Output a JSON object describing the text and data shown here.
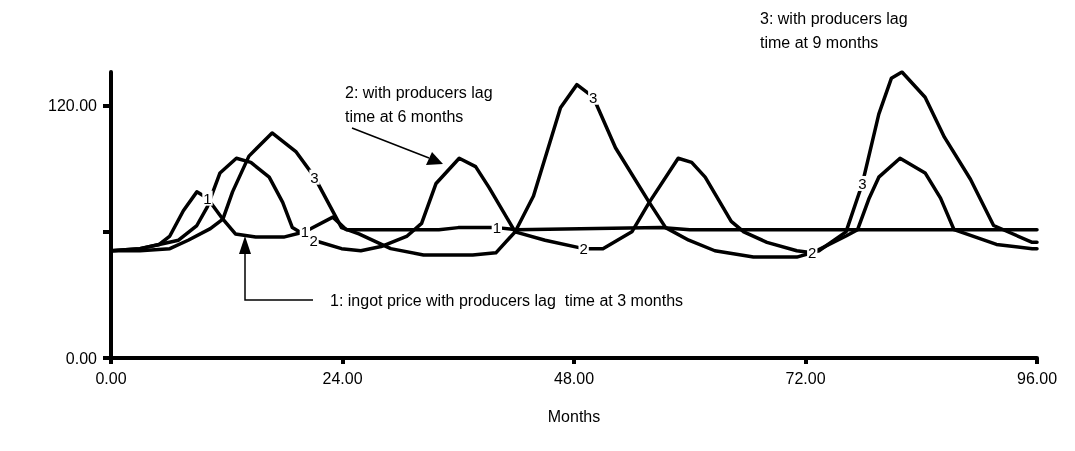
{
  "chart_data": {
    "type": "line",
    "xlabel": "Months",
    "xlim": [
      0,
      96
    ],
    "ylim": [
      0,
      136
    ],
    "xticks": [
      {
        "value": 0,
        "label": "0.00"
      },
      {
        "value": 24,
        "label": "24.00"
      },
      {
        "value": 48,
        "label": "48.00"
      },
      {
        "value": 72,
        "label": "72.00"
      },
      {
        "value": 96,
        "label": "96.00"
      }
    ],
    "yticks": [
      {
        "value": 0,
        "label": "0.00"
      },
      {
        "value": 60,
        "label": null
      },
      {
        "value": 120,
        "label": "120.00"
      }
    ],
    "grid": false,
    "legend": false,
    "marker": "none",
    "line_style": "solid",
    "annotations": [
      "1: ingot price with producers lag  time at 3 months",
      "2: with producers lag time at 6 months",
      "3: with producers lag time at 9 months"
    ],
    "series": [
      {
        "name": "1",
        "color": "#000000",
        "x": [
          0,
          3,
          5,
          6.1,
          7.5,
          8.9,
          10,
          11.6,
          12.9,
          15,
          17.9,
          20.1,
          23,
          24.4,
          27,
          34,
          36,
          40,
          42,
          57,
          60,
          96
        ],
        "values": [
          51,
          52,
          54,
          58,
          70,
          79,
          76,
          66,
          59,
          57.5,
          57.5,
          60,
          67,
          61,
          61,
          61,
          62,
          62,
          61,
          62,
          61,
          61
        ]
      },
      {
        "name": "2",
        "color": "#000000",
        "x": [
          0,
          3,
          5,
          7,
          8.9,
          10,
          11.3,
          13,
          14.5,
          16.4,
          17.8,
          18.8,
          21,
          23.9,
          25.9,
          28,
          30.7,
          32.2,
          33.7,
          36.1,
          37.8,
          39.2,
          41.9,
          45,
          49,
          51,
          54,
          55.8,
          58.8,
          60.2,
          61.6,
          64.3,
          65.6,
          68,
          71.1,
          72.7,
          76.2,
          77.4,
          78.6,
          79.6,
          81.8,
          84.4,
          86,
          87.4,
          91.8,
          95.5,
          96
        ],
        "values": [
          51,
          52,
          54,
          56,
          63,
          72,
          88,
          95,
          93,
          86,
          74,
          62,
          56,
          52,
          51,
          53,
          58,
          64,
          83,
          95,
          91,
          81,
          60,
          56,
          52,
          52,
          60,
          74,
          95,
          93,
          86,
          65,
          60,
          55,
          51,
          50,
          58,
          61,
          76,
          86,
          95,
          88,
          76,
          61,
          54,
          52,
          52
        ]
      },
      {
        "name": "3",
        "color": "#000000",
        "x": [
          0,
          3,
          6.1,
          8,
          10.3,
          11.6,
          12.6,
          14.3,
          16.7,
          19.2,
          21.1,
          23.9,
          25.7,
          29,
          32.4,
          37.5,
          39.9,
          41.9,
          43.8,
          46.6,
          48.3,
          50,
          52.3,
          55.8,
          57.5,
          59.9,
          62.6,
          66.6,
          71.1,
          73.4,
          76.2,
          77.9,
          79.6,
          80.9,
          82,
          84.4,
          86.4,
          89.1,
          91.5,
          95.5,
          96
        ],
        "values": [
          51,
          51,
          52,
          56,
          61.5,
          66,
          79,
          96,
          107,
          98,
          86,
          62,
          59,
          52,
          49,
          49,
          50,
          60,
          77,
          119,
          130,
          124,
          100,
          74,
          62,
          56,
          51,
          48,
          48,
          51,
          60,
          83,
          116,
          133,
          136,
          124,
          105,
          85,
          63,
          55,
          55
        ]
      }
    ]
  }
}
